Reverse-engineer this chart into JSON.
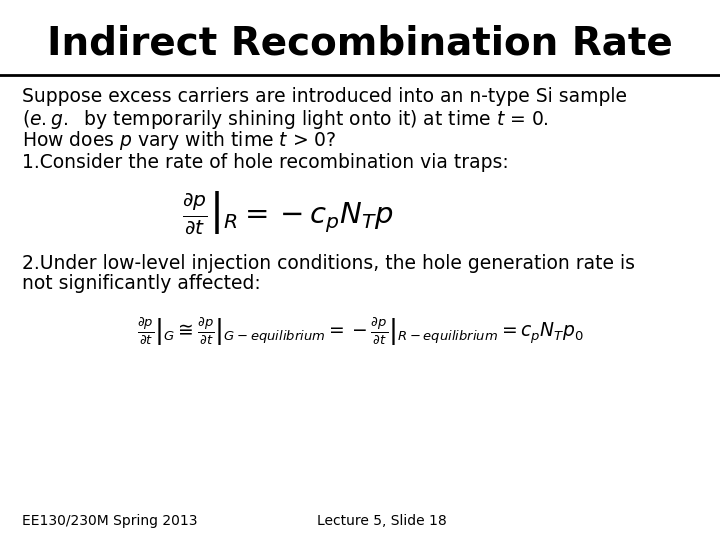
{
  "title": "Indirect Recombination Rate",
  "background_color": "#ffffff",
  "title_fontsize": 28,
  "title_fontweight": "bold",
  "body_fontsize": 13.5,
  "footer_fontsize": 10,
  "text_color": "#000000",
  "para1_line1": "Suppose excess carriers are introduced into an n-type Si sample",
  "para1_line2": "(e.g.  by temporarily shining light onto it) at time t = 0.",
  "para1_line3": "How does p vary with time t > 0?",
  "para2": "1.Consider the rate of hole recombination via traps:",
  "para3_line1": "2.Under low-level injection conditions, the hole generation rate is",
  "para3_line2": "not significantly affected:",
  "footer_left": "EE130/230M Spring 2013",
  "footer_right": "Lecture 5, Slide 18"
}
